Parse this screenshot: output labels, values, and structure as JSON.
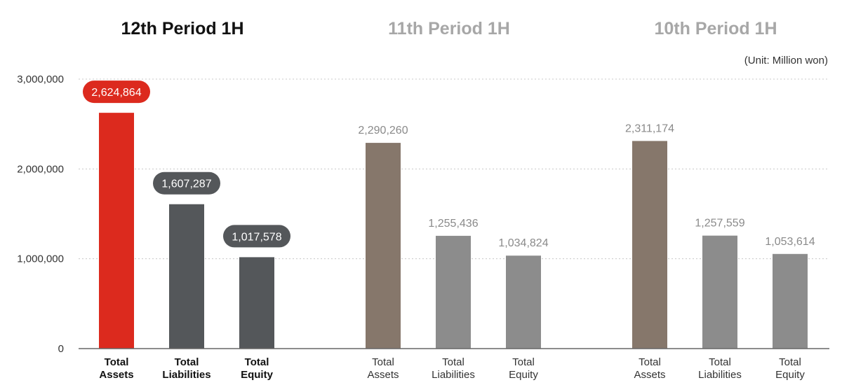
{
  "chart_data": {
    "type": "bar",
    "unit": "(Unit: Million won)",
    "ylim": [
      0,
      3000000
    ],
    "y_ticks": [
      {
        "value": 0,
        "label": "0"
      },
      {
        "value": 1000000,
        "label": "1,000,000"
      },
      {
        "value": 2000000,
        "label": "2,000,000"
      },
      {
        "value": 3000000,
        "label": "3,000,000"
      }
    ],
    "grid": true,
    "groups": [
      {
        "title": "12th Period 1H",
        "highlight": true,
        "bars": [
          {
            "category": "Total Assets",
            "value": 2624864,
            "label": "2,624,864",
            "color": "#dc2a1e"
          },
          {
            "category": "Total Liabilities",
            "value": 1607287,
            "label": "1,607,287",
            "color": "#54575a"
          },
          {
            "category": "Total Equity",
            "value": 1017578,
            "label": "1,017,578",
            "color": "#54575a"
          }
        ]
      },
      {
        "title": "11th Period 1H",
        "highlight": false,
        "bars": [
          {
            "category": "Total Assets",
            "value": 2290260,
            "label": "2,290,260",
            "color": "#86776b"
          },
          {
            "category": "Total Liabilities",
            "value": 1255436,
            "label": "1,255,436",
            "color": "#8c8c8c"
          },
          {
            "category": "Total Equity",
            "value": 1034824,
            "label": "1,034,824",
            "color": "#8c8c8c"
          }
        ]
      },
      {
        "title": "10th Period 1H",
        "highlight": false,
        "bars": [
          {
            "category": "Total Assets",
            "value": 2311174,
            "label": "2,311,174",
            "color": "#86776b"
          },
          {
            "category": "Total Liabilities",
            "value": 1257559,
            "label": "1,257,559",
            "color": "#8c8c8c"
          },
          {
            "category": "Total Equity",
            "value": 1053614,
            "label": "1,053,614",
            "color": "#8c8c8c"
          }
        ]
      }
    ]
  },
  "colors": {
    "accent": "#dc2a1e",
    "bubble_dark": "#54575a",
    "title_active": "#111111",
    "title_inactive": "#a7a7a7",
    "value_inactive": "#8a8a8a",
    "category_active": "#111111",
    "category_inactive": "#333333"
  }
}
